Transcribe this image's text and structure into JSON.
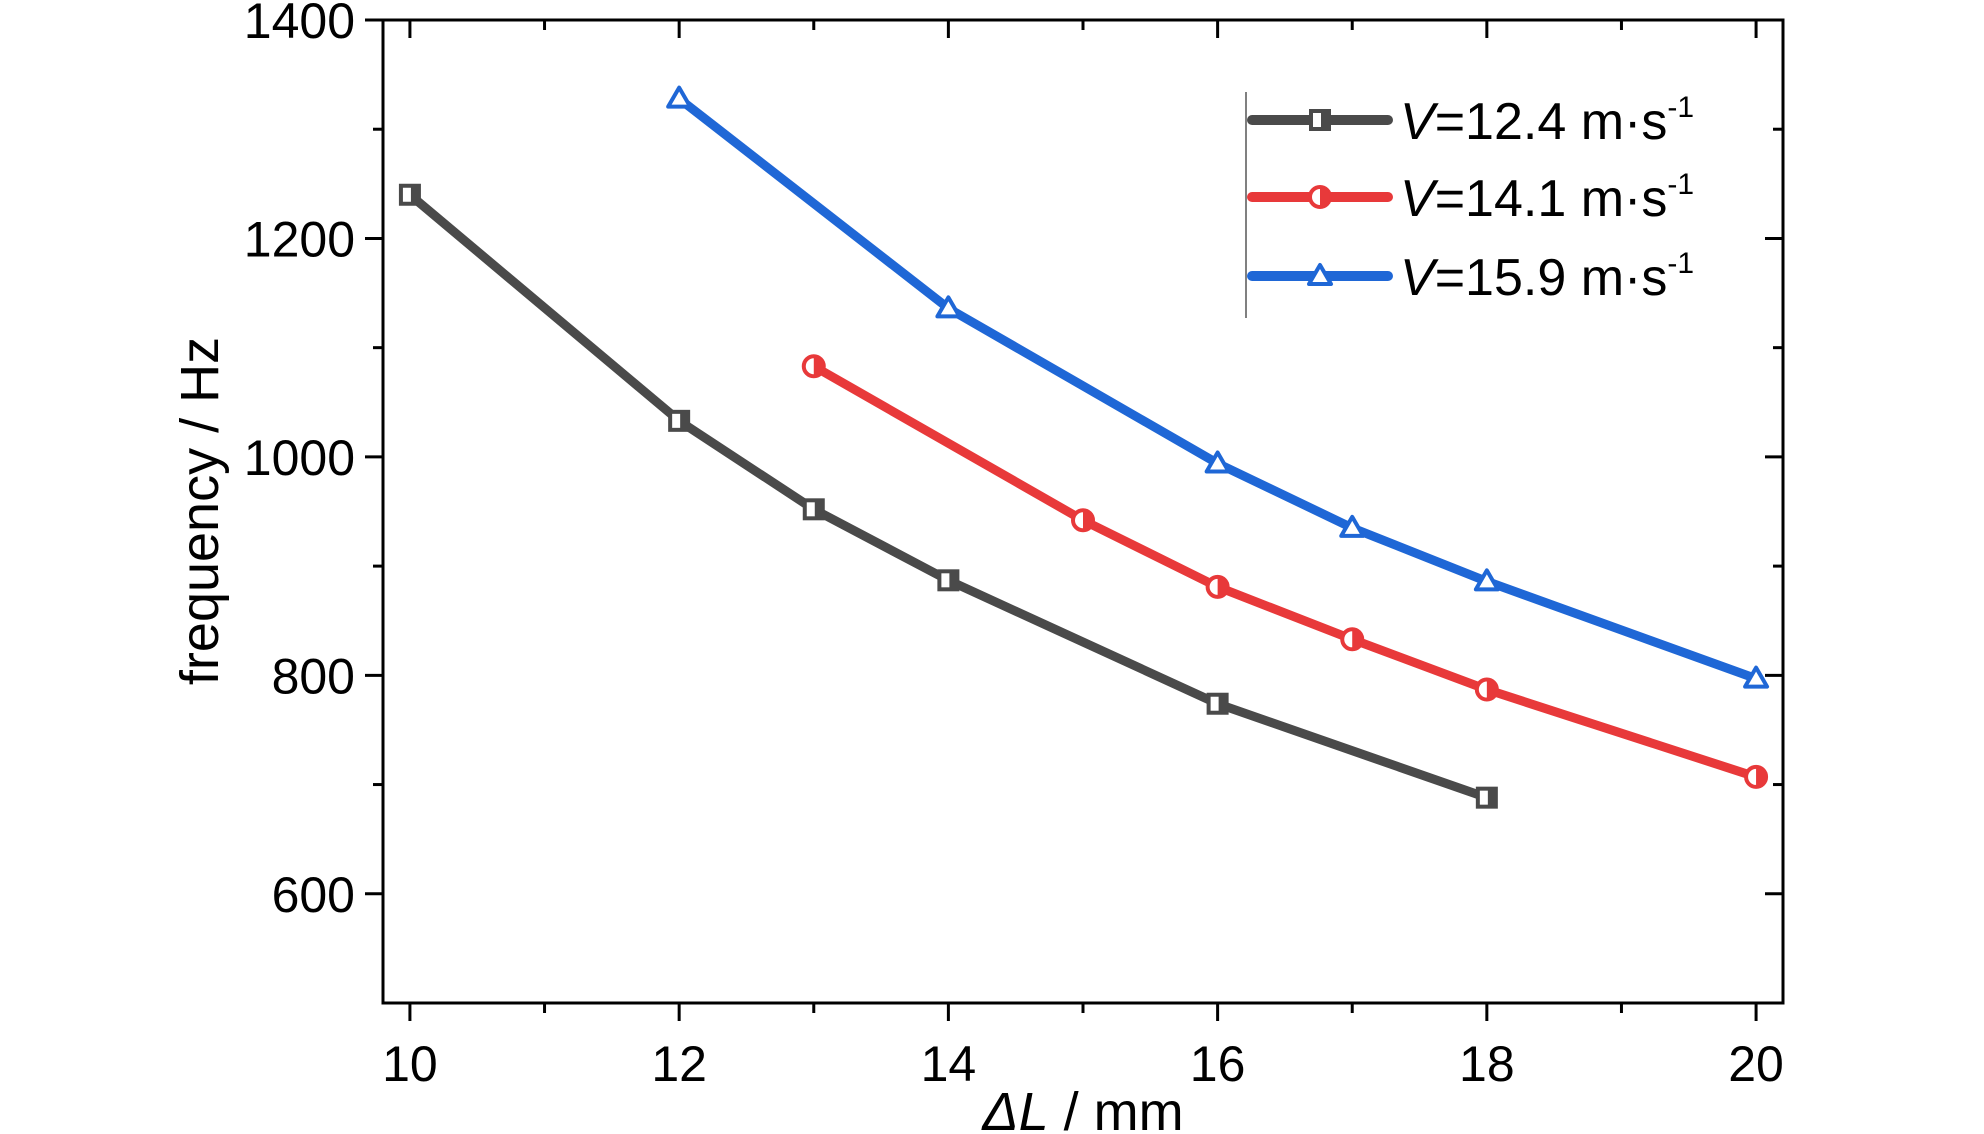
{
  "chart_data": {
    "type": "line",
    "xlabel_symbol": "ΔL",
    "xlabel_unit": " / mm",
    "ylabel": "frequency / Hz",
    "xlim": [
      9.8,
      20.2
    ],
    "ylim": [
      500,
      1400
    ],
    "xticks": [
      10,
      12,
      14,
      16,
      18,
      20
    ],
    "xminor": [
      11,
      13,
      15,
      17,
      19
    ],
    "yticks": [
      600,
      800,
      1000,
      1200,
      1400
    ],
    "yminor": [
      700,
      900,
      1100,
      1300
    ],
    "grid": false,
    "legend_position": "top-right",
    "series": [
      {
        "name_symbol": "V",
        "name_value": "=12.4 m·s",
        "name_exp": "-1",
        "color": "#4a4a4a",
        "marker": "square",
        "x": [
          10,
          12,
          13,
          14,
          16,
          18
        ],
        "y": [
          1240,
          1033,
          952,
          887,
          774,
          688
        ]
      },
      {
        "name_symbol": "V",
        "name_value": "=14.1 m·s",
        "name_exp": "-1",
        "color": "#e8393a",
        "marker": "circle",
        "x": [
          13,
          15,
          16,
          17,
          18,
          20
        ],
        "y": [
          1083,
          942,
          881,
          833,
          787,
          707
        ]
      },
      {
        "name_symbol": "V",
        "name_value": "=15.9 m·s",
        "name_exp": "-1",
        "color": "#1f67d6",
        "marker": "triangle",
        "x": [
          12,
          14,
          16,
          17,
          18,
          20
        ],
        "y": [
          1328,
          1136,
          994,
          935,
          886,
          797
        ]
      }
    ]
  }
}
